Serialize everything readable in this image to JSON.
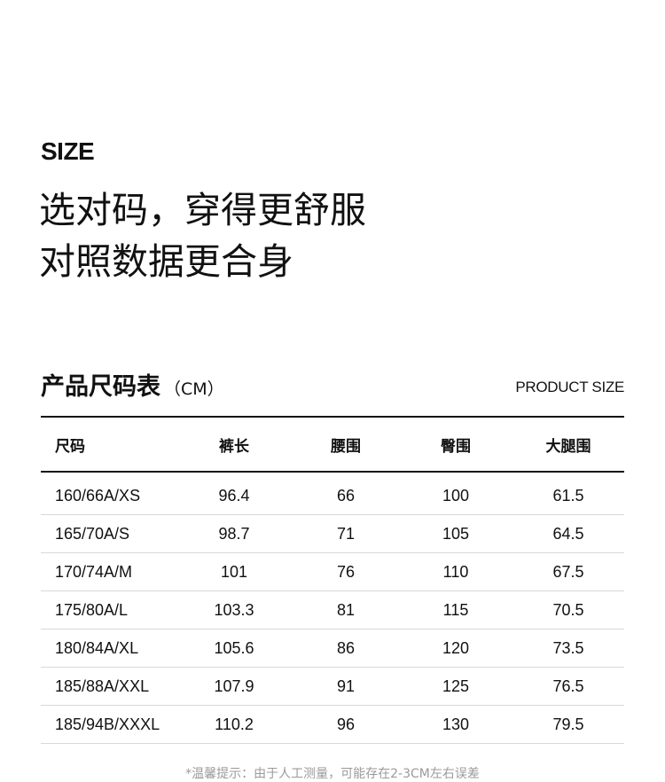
{
  "header": {
    "eyebrow": "SIZE",
    "headline_line1": "选对码，穿得更舒服",
    "headline_line2": "对照数据更合身"
  },
  "size_table": {
    "title": "产品尺码表",
    "unit": "（CM）",
    "subtitle": "PRODUCT SIZE",
    "columns": [
      "尺码",
      "裤长",
      "腰围",
      "臀围",
      "大腿围"
    ],
    "rows": [
      [
        "160/66A/XS",
        "96.4",
        "66",
        "100",
        "61.5"
      ],
      [
        "165/70A/S",
        "98.7",
        "71",
        "105",
        "64.5"
      ],
      [
        "170/74A/M",
        "101",
        "76",
        "110",
        "67.5"
      ],
      [
        "175/80A/L",
        "103.3",
        "81",
        "115",
        "70.5"
      ],
      [
        "180/84A/XL",
        "105.6",
        "86",
        "120",
        "73.5"
      ],
      [
        "185/88A/XXL",
        "107.9",
        "91",
        "125",
        "76.5"
      ],
      [
        "185/94B/XXXL",
        "110.2",
        "96",
        "130",
        "79.5"
      ]
    ]
  },
  "footer": {
    "note": "*温馨提示：由于人工测量，可能存在2-3CM左右误差"
  }
}
